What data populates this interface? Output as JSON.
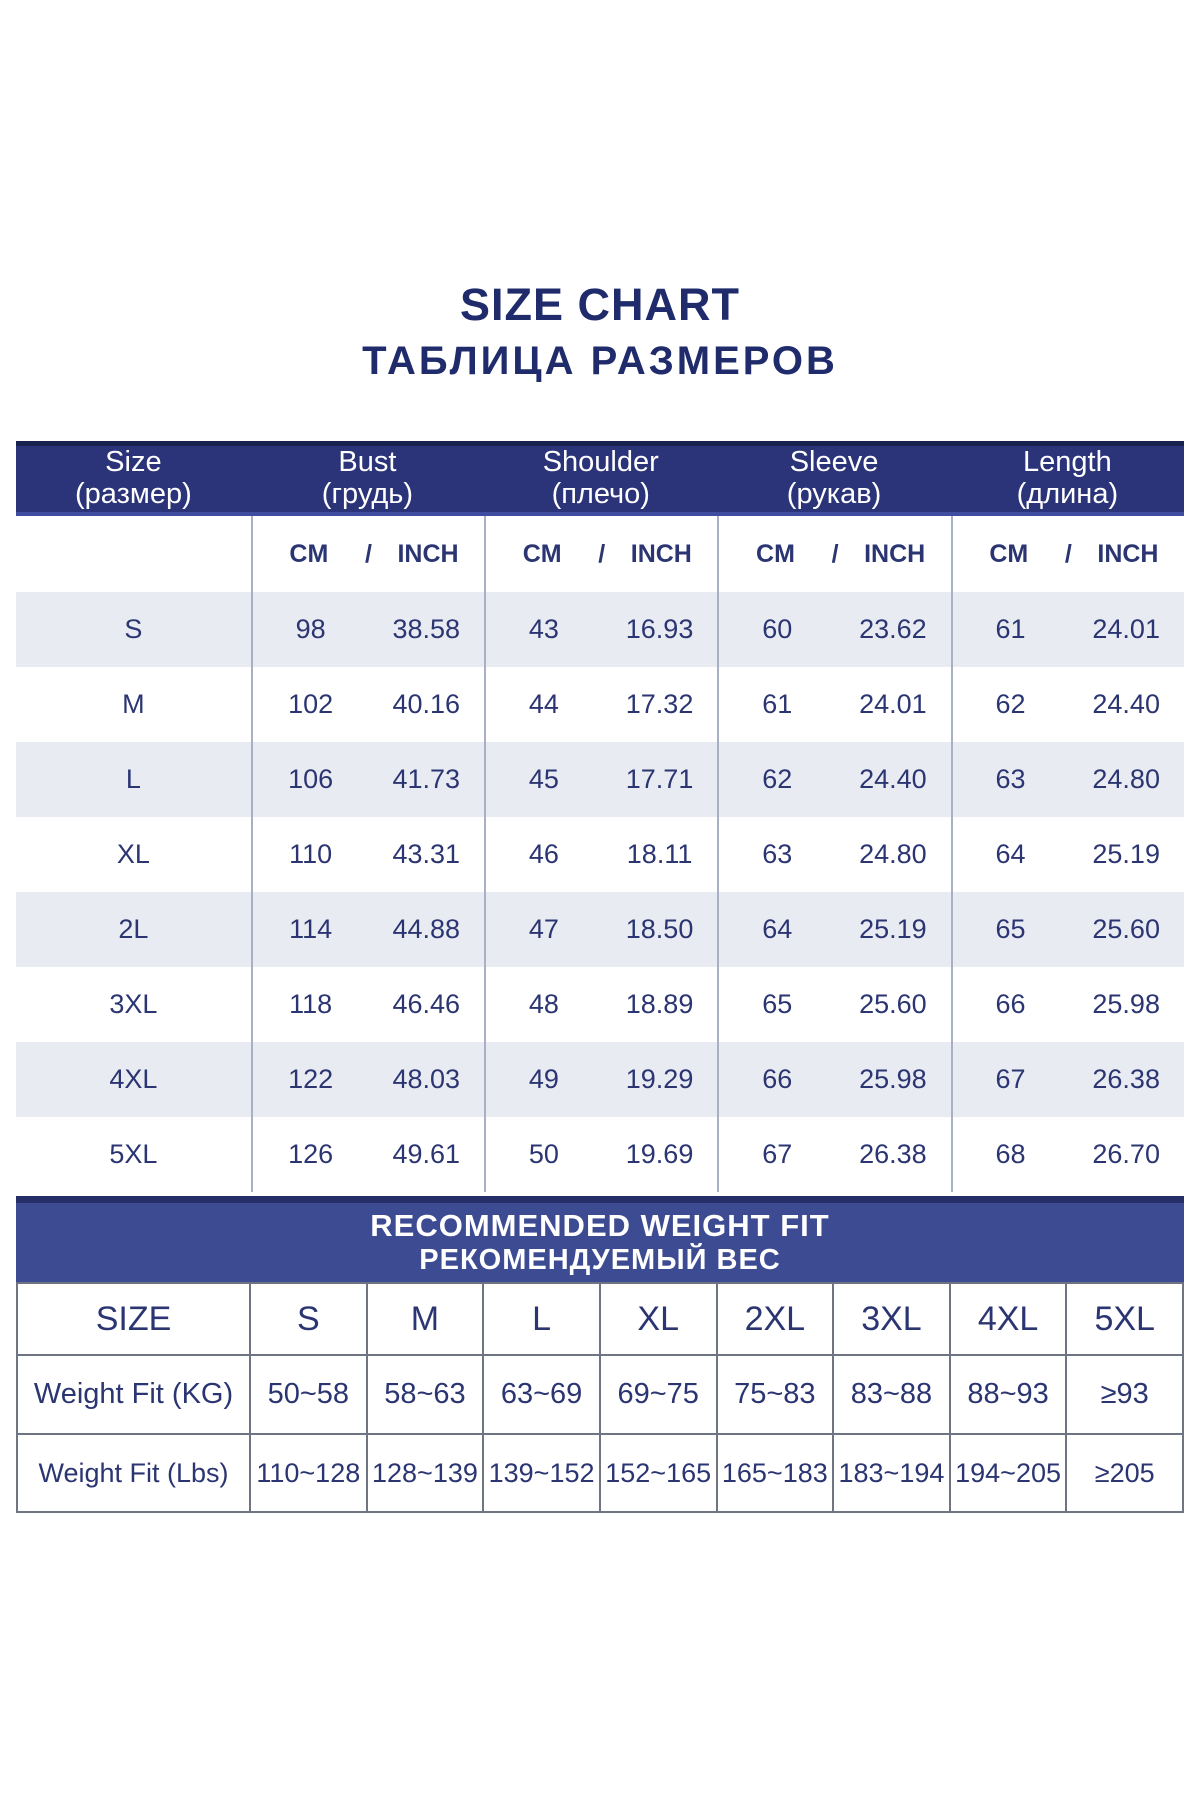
{
  "title": "SIZE CHART",
  "subtitle": "ТАБЛИЦА РАЗМЕРОВ",
  "colors": {
    "header_bg": "#2b3478",
    "header_top_edge": "#19214f",
    "header_bottom_edge": "#3e4d9f",
    "banner_bg": "#3d4b92",
    "banner_top_edge": "#252e66",
    "alt_row_bg": "#e9ebf2",
    "text_navy": "#2b3572",
    "title_navy": "#1f2b6b",
    "divider": "#a9b0c4",
    "table_border": "#6f7482"
  },
  "size_table": {
    "columns": [
      {
        "label": "Size",
        "sublabel": "(размер)"
      },
      {
        "label": "Bust",
        "sublabel": "(грудь)"
      },
      {
        "label": "Shoulder",
        "sublabel": "(плечо)"
      },
      {
        "label": "Sleeve",
        "sublabel": "(рукав)"
      },
      {
        "label": "Length",
        "sublabel": "(длина)"
      }
    ],
    "units": {
      "cm": "CM",
      "sep": "/",
      "inch": "INCH"
    },
    "rows": [
      {
        "size": "S",
        "bust_cm": "98",
        "bust_in": "38.58",
        "shoulder_cm": "43",
        "shoulder_in": "16.93",
        "sleeve_cm": "60",
        "sleeve_in": "23.62",
        "length_cm": "61",
        "length_in": "24.01"
      },
      {
        "size": "M",
        "bust_cm": "102",
        "bust_in": "40.16",
        "shoulder_cm": "44",
        "shoulder_in": "17.32",
        "sleeve_cm": "61",
        "sleeve_in": "24.01",
        "length_cm": "62",
        "length_in": "24.40"
      },
      {
        "size": "L",
        "bust_cm": "106",
        "bust_in": "41.73",
        "shoulder_cm": "45",
        "shoulder_in": "17.71",
        "sleeve_cm": "62",
        "sleeve_in": "24.40",
        "length_cm": "63",
        "length_in": "24.80"
      },
      {
        "size": "XL",
        "bust_cm": "110",
        "bust_in": "43.31",
        "shoulder_cm": "46",
        "shoulder_in": "18.11",
        "sleeve_cm": "63",
        "sleeve_in": "24.80",
        "length_cm": "64",
        "length_in": "25.19"
      },
      {
        "size": "2L",
        "bust_cm": "114",
        "bust_in": "44.88",
        "shoulder_cm": "47",
        "shoulder_in": "18.50",
        "sleeve_cm": "64",
        "sleeve_in": "25.19",
        "length_cm": "65",
        "length_in": "25.60"
      },
      {
        "size": "3XL",
        "bust_cm": "118",
        "bust_in": "46.46",
        "shoulder_cm": "48",
        "shoulder_in": "18.89",
        "sleeve_cm": "65",
        "sleeve_in": "25.60",
        "length_cm": "66",
        "length_in": "25.98"
      },
      {
        "size": "4XL",
        "bust_cm": "122",
        "bust_in": "48.03",
        "shoulder_cm": "49",
        "shoulder_in": "19.29",
        "sleeve_cm": "66",
        "sleeve_in": "25.98",
        "length_cm": "67",
        "length_in": "26.38"
      },
      {
        "size": "5XL",
        "bust_cm": "126",
        "bust_in": "49.61",
        "shoulder_cm": "50",
        "shoulder_in": "19.69",
        "sleeve_cm": "67",
        "sleeve_in": "26.38",
        "length_cm": "68",
        "length_in": "26.70"
      }
    ]
  },
  "weight_table": {
    "banner_line1": "RECOMMENDED WEIGHT FIT",
    "banner_line2": "РЕКОМЕНДУЕМЫЙ ВЕС",
    "header": [
      "SIZE",
      "S",
      "M",
      "L",
      "XL",
      "2XL",
      "3XL",
      "4XL",
      "5XL"
    ],
    "rows": [
      {
        "label": "Weight Fit (KG)",
        "values": [
          "50~58",
          "58~63",
          "63~69",
          "69~75",
          "75~83",
          "83~88",
          "88~93",
          "≥93"
        ]
      },
      {
        "label": "Weight Fit (Lbs)",
        "values": [
          "110~128",
          "128~139",
          "139~152",
          "152~165",
          "165~183",
          "183~194",
          "194~205",
          "≥205"
        ]
      }
    ]
  },
  "chart_data": [
    {
      "type": "table",
      "title": "SIZE CHART / ТАБЛИЦА РАЗМЕРОВ",
      "columns": [
        "Size (размер)",
        "Bust CM",
        "Bust INCH",
        "Shoulder CM",
        "Shoulder INCH",
        "Sleeve CM",
        "Sleeve INCH",
        "Length CM",
        "Length INCH"
      ],
      "rows": [
        [
          "S",
          "98",
          "38.58",
          "43",
          "16.93",
          "60",
          "23.62",
          "61",
          "24.01"
        ],
        [
          "M",
          "102",
          "40.16",
          "44",
          "17.32",
          "61",
          "24.01",
          "62",
          "24.40"
        ],
        [
          "L",
          "106",
          "41.73",
          "45",
          "17.71",
          "62",
          "24.40",
          "63",
          "24.80"
        ],
        [
          "XL",
          "110",
          "43.31",
          "46",
          "18.11",
          "63",
          "24.80",
          "64",
          "25.19"
        ],
        [
          "2L",
          "114",
          "44.88",
          "47",
          "18.50",
          "64",
          "25.19",
          "65",
          "25.60"
        ],
        [
          "3XL",
          "118",
          "46.46",
          "48",
          "18.89",
          "65",
          "25.60",
          "66",
          "25.98"
        ],
        [
          "4XL",
          "122",
          "48.03",
          "49",
          "19.29",
          "66",
          "25.98",
          "67",
          "26.38"
        ],
        [
          "5XL",
          "126",
          "49.61",
          "50",
          "19.69",
          "67",
          "26.38",
          "68",
          "26.70"
        ]
      ]
    },
    {
      "type": "table",
      "title": "RECOMMENDED WEIGHT FIT / РЕКОМЕНДУЕМЫЙ ВЕС",
      "columns": [
        "SIZE",
        "S",
        "M",
        "L",
        "XL",
        "2XL",
        "3XL",
        "4XL",
        "5XL"
      ],
      "rows": [
        [
          "Weight Fit (KG)",
          "50~58",
          "58~63",
          "63~69",
          "69~75",
          "75~83",
          "83~88",
          "88~93",
          "≥93"
        ],
        [
          "Weight Fit (Lbs)",
          "110~128",
          "128~139",
          "139~152",
          "152~165",
          "165~183",
          "183~194",
          "194~205",
          "≥205"
        ]
      ]
    }
  ]
}
